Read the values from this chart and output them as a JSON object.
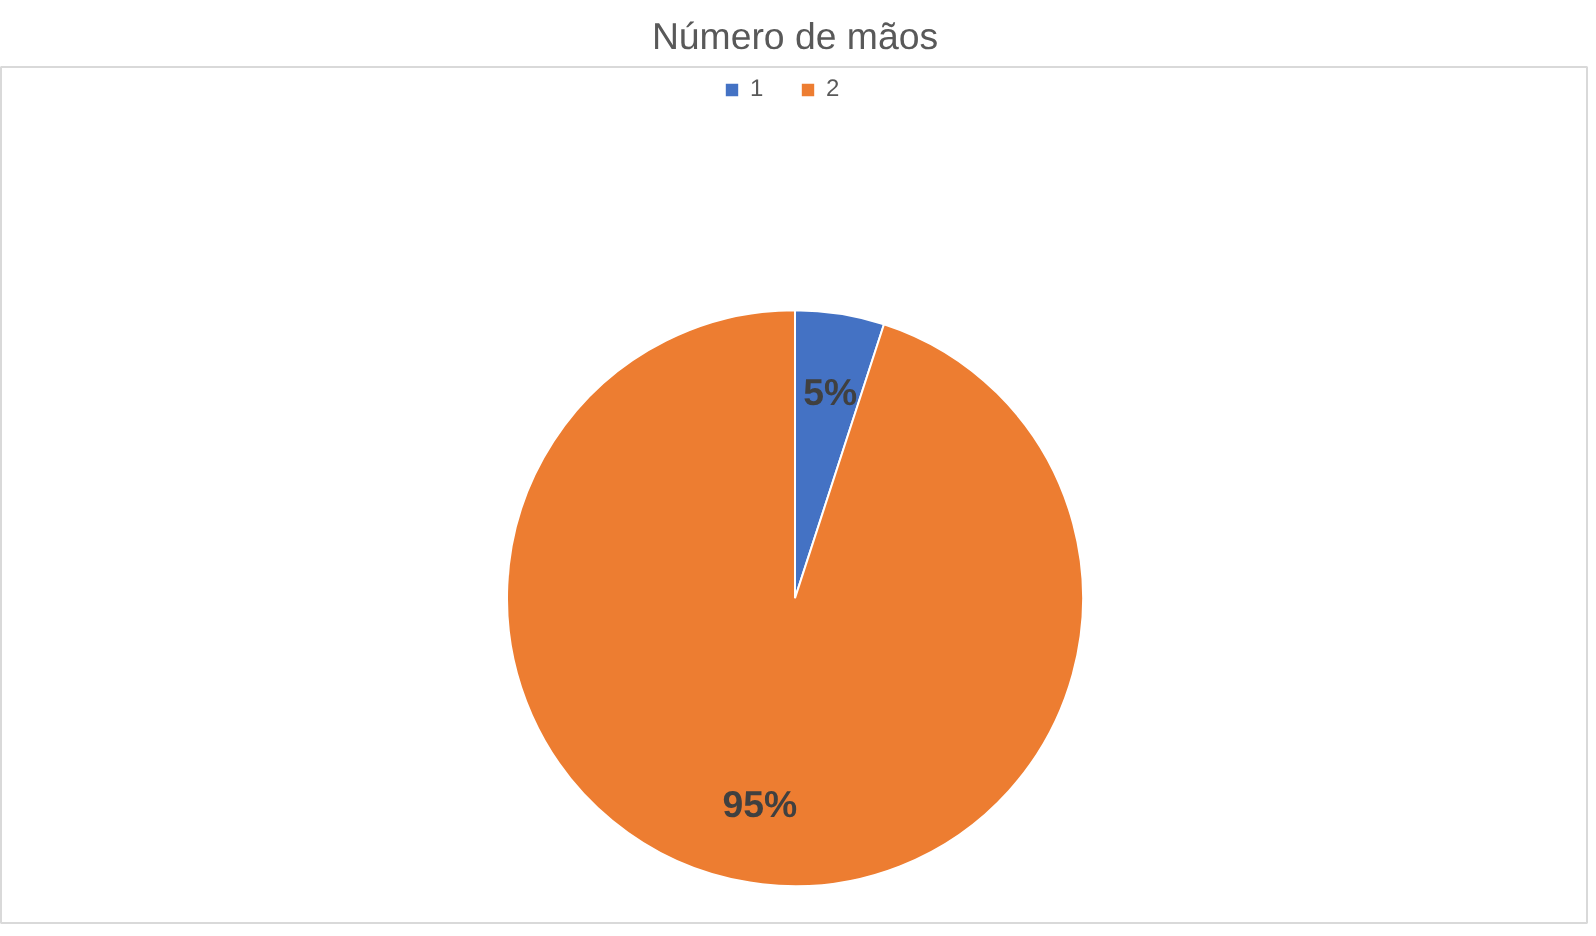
{
  "chart_data": {
    "type": "pie",
    "title": "Número de mãos",
    "categories": [
      "1",
      "2"
    ],
    "values": [
      5,
      95
    ],
    "colors": [
      "#4472c4",
      "#ed7d31"
    ],
    "value_labels": [
      "5%",
      "95%"
    ],
    "legend": "top"
  }
}
